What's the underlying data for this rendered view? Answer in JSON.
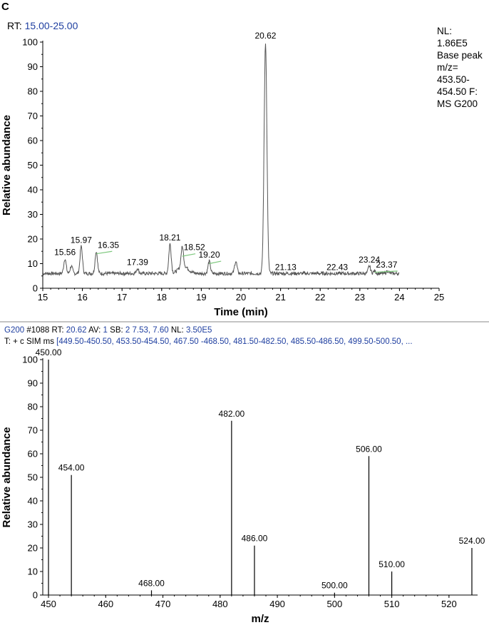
{
  "panel_letter": "C",
  "top": {
    "rt_prefix": "RT:",
    "rt_value": "15.00-25.00",
    "nl_lines": [
      "NL:",
      "1.86E5",
      "Base peak",
      "m/z=",
      "453.50-",
      "454.50 F:",
      "MS G200"
    ]
  },
  "bottom": {
    "header_line1": [
      {
        "text": "G200",
        "blue": true
      },
      {
        "text": " #1088   RT: ",
        "blue": false
      },
      {
        "text": "20.62",
        "blue": true
      },
      {
        "text": "   AV: ",
        "blue": false
      },
      {
        "text": "1",
        "blue": true
      },
      {
        "text": "   SB: ",
        "blue": false
      },
      {
        "text": "2 7.53, 7.60",
        "blue": true
      },
      {
        "text": "      NL: ",
        "blue": false
      },
      {
        "text": "3.50E5",
        "blue": true
      }
    ],
    "header_line2": [
      {
        "text": "T: + c SIM ms ",
        "blue": false
      },
      {
        "text": "[449.50-450.50, 453.50-454.50, 467.50 -468.50, 481.50-482.50, 485.50-486.50, 499.50-500.50, ...",
        "blue": true
      }
    ]
  },
  "colors": {
    "trace": "#555555",
    "baseline_marker": "#7ec87e",
    "header_blue": "#1f3fa0",
    "separator": "#888888"
  },
  "chart_data": [
    {
      "type": "line",
      "xlabel": "Time (min)",
      "ylabel": "Relative abundance",
      "xlim": [
        15,
        25
      ],
      "ylim": [
        0,
        100
      ],
      "xticks": [
        15,
        16,
        17,
        18,
        19,
        20,
        21,
        22,
        23,
        24,
        25
      ],
      "yticks": [
        0,
        10,
        20,
        30,
        40,
        50,
        60,
        70,
        80,
        90,
        100
      ],
      "grid": false,
      "peaks": [
        {
          "x": 15.56,
          "y": 12,
          "label": "15.56"
        },
        {
          "x": 15.72,
          "y": 9,
          "label": ""
        },
        {
          "x": 15.97,
          "y": 17,
          "label": "15.97"
        },
        {
          "x": 16.35,
          "y": 15,
          "label": "16.35"
        },
        {
          "x": 17.39,
          "y": 8,
          "label": "17.39"
        },
        {
          "x": 18.21,
          "y": 18,
          "label": "18.21"
        },
        {
          "x": 18.52,
          "y": 14,
          "label": "18.52"
        },
        {
          "x": 19.2,
          "y": 11,
          "label": "19.20"
        },
        {
          "x": 19.87,
          "y": 11,
          "label": ""
        },
        {
          "x": 20.62,
          "y": 100,
          "label": "20.62"
        },
        {
          "x": 21.13,
          "y": 6,
          "label": "21.13"
        },
        {
          "x": 22.43,
          "y": 6,
          "label": "22.43"
        },
        {
          "x": 23.24,
          "y": 9,
          "label": "23.24"
        },
        {
          "x": 23.37,
          "y": 7,
          "label": "23.37"
        },
        {
          "x": 23.7,
          "y": 7,
          "label": ""
        }
      ],
      "baseline": 6,
      "x_end": 24.0,
      "label_positions": {
        "16.35": "right",
        "18.52": "right",
        "23.37": "right"
      }
    },
    {
      "type": "bar",
      "xlabel": "m/z",
      "ylabel": "Relative abundance",
      "xlim": [
        449,
        525
      ],
      "ylim": [
        0,
        100
      ],
      "xticks": [
        450,
        460,
        470,
        480,
        490,
        500,
        510,
        520
      ],
      "yticks": [
        0,
        10,
        20,
        30,
        40,
        50,
        60,
        70,
        80,
        90,
        100
      ],
      "grid": false,
      "series": [
        {
          "x": 450.0,
          "y": 100,
          "label": "450.00"
        },
        {
          "x": 454.0,
          "y": 51,
          "label": "454.00"
        },
        {
          "x": 468.0,
          "y": 2,
          "label": "468.00"
        },
        {
          "x": 482.0,
          "y": 74,
          "label": "482.00"
        },
        {
          "x": 486.0,
          "y": 21,
          "label": "486.00"
        },
        {
          "x": 500.0,
          "y": 1,
          "label": "500.00"
        },
        {
          "x": 506.0,
          "y": 59,
          "label": "506.00"
        },
        {
          "x": 510.0,
          "y": 10,
          "label": "510.00"
        },
        {
          "x": 524.0,
          "y": 20,
          "label": "524.00"
        }
      ]
    }
  ]
}
